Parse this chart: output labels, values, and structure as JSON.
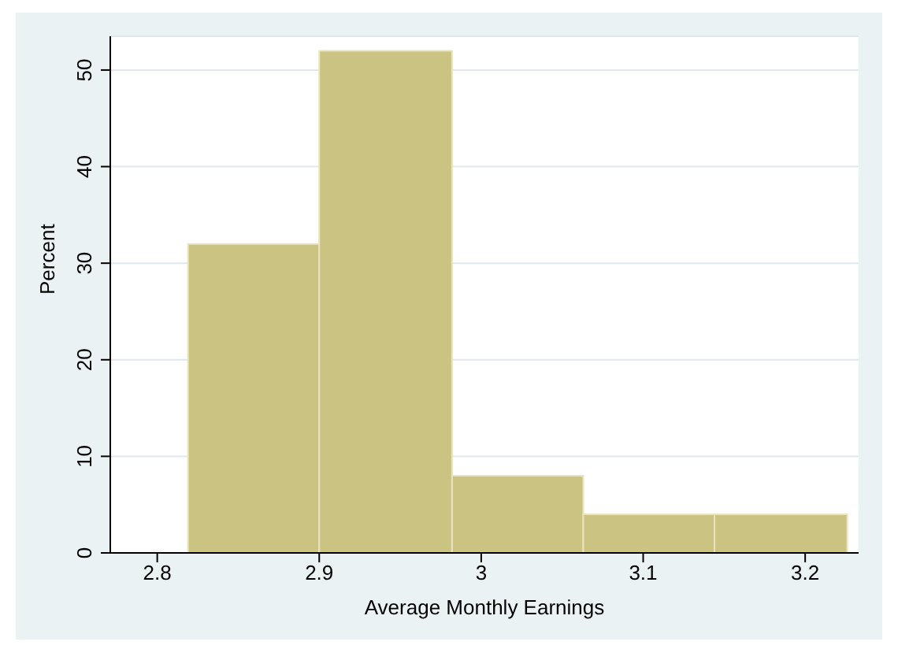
{
  "chart_data": {
    "type": "histogram",
    "xlabel": "Average Monthly Earnings",
    "ylabel": "Percent",
    "bins": [
      2.819,
      2.9,
      2.982,
      3.063,
      3.144,
      3.226
    ],
    "values": [
      32,
      52,
      8,
      4,
      4
    ],
    "color": "#cbc382",
    "xlim": [
      2.771,
      3.233
    ],
    "xticks": [
      2.8,
      2.9,
      3,
      3.1,
      3.2
    ],
    "ylim": [
      0,
      53.5
    ],
    "yticks": [
      0,
      10,
      20,
      30,
      40,
      50
    ],
    "grid": "y"
  }
}
